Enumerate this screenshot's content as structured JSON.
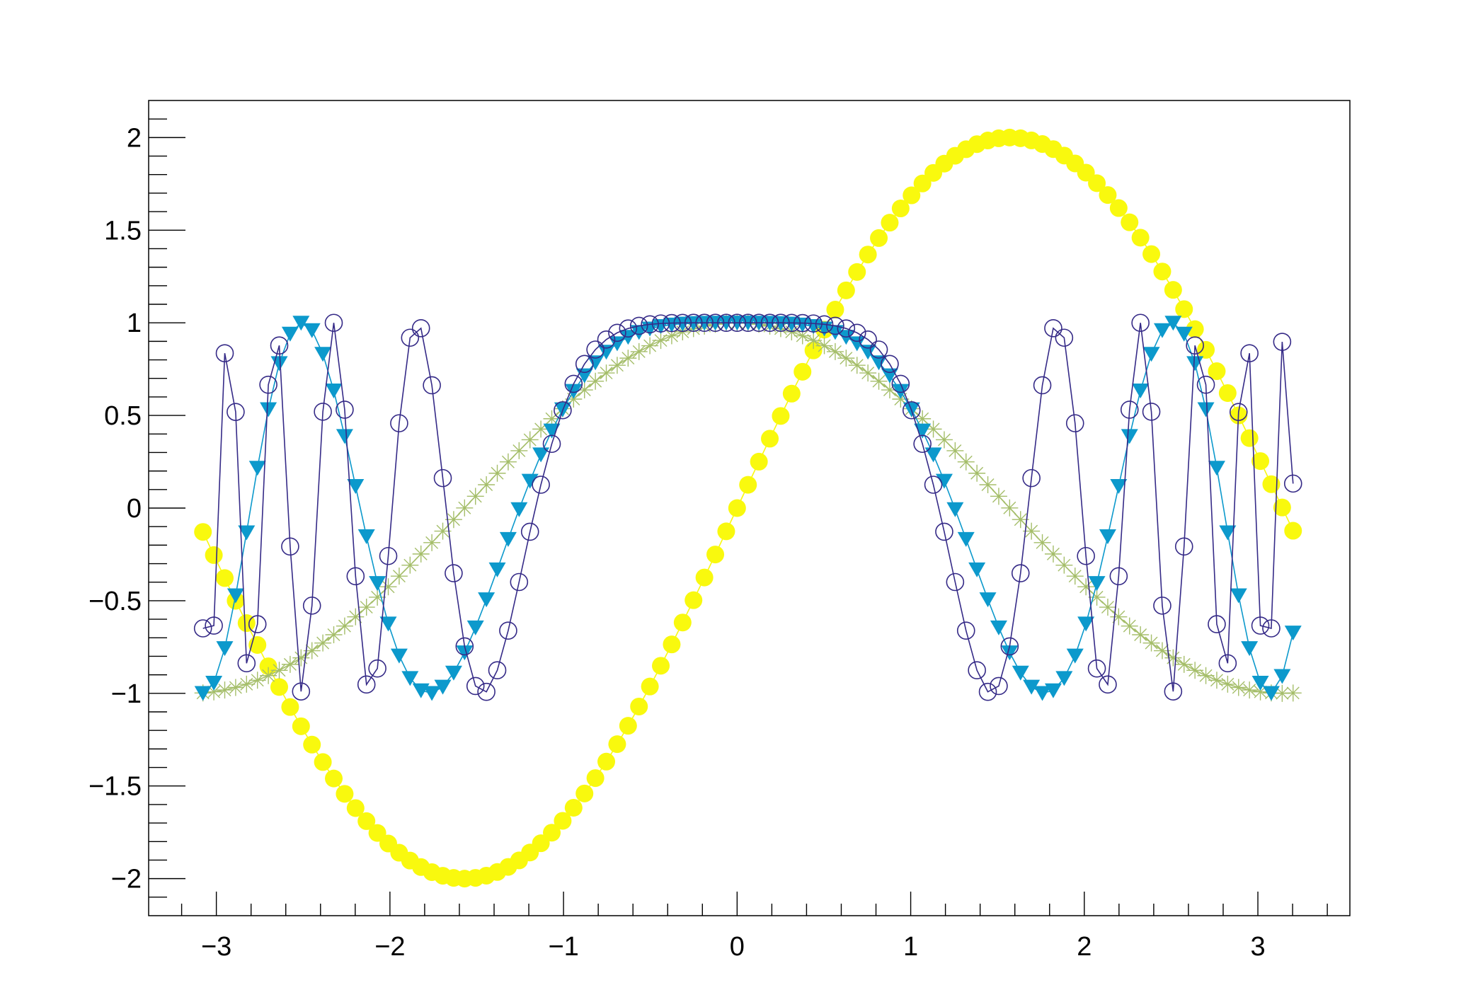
{
  "chart_data": {
    "type": "scatter",
    "title": "",
    "xlabel": "",
    "ylabel": "",
    "xlim": [
      -3.39,
      3.53
    ],
    "ylim": [
      -2.2,
      2.2
    ],
    "grid": false,
    "legend": "none",
    "x": {
      "start": -3.0772,
      "end": 3.2028,
      "count": 101
    },
    "x_ticks": [
      {
        "value": -3,
        "label": "−3"
      },
      {
        "value": -2,
        "label": "−2"
      },
      {
        "value": -1,
        "label": "−1"
      },
      {
        "value": 0,
        "label": "0"
      },
      {
        "value": 1,
        "label": "1"
      },
      {
        "value": 2,
        "label": "2"
      },
      {
        "value": 3,
        "label": "3"
      }
    ],
    "y_ticks": [
      {
        "value": 2,
        "label": "2"
      },
      {
        "value": 1.5,
        "label": "1.5"
      },
      {
        "value": 1,
        "label": "1"
      },
      {
        "value": 0.5,
        "label": "0.5"
      },
      {
        "value": 0,
        "label": "0"
      },
      {
        "value": -0.5,
        "label": "−0.5"
      },
      {
        "value": -1,
        "label": "−1"
      },
      {
        "value": -1.5,
        "label": "−1.5"
      },
      {
        "value": -2,
        "label": "−2"
      }
    ],
    "series": [
      {
        "formula": "2*sin(x)",
        "marker": "filled-circle",
        "color": "#f9f90e",
        "line": true
      },
      {
        "formula": "cos(x)",
        "marker": "star",
        "color": "#a5be6a",
        "line": true
      },
      {
        "formula": "cos(x*x)",
        "marker": "filled-triangle-down",
        "color": "#0c99cc",
        "line": true
      },
      {
        "formula": "cos(x*x*x)",
        "marker": "open-circle",
        "color": "#352a87",
        "line": true
      }
    ]
  }
}
